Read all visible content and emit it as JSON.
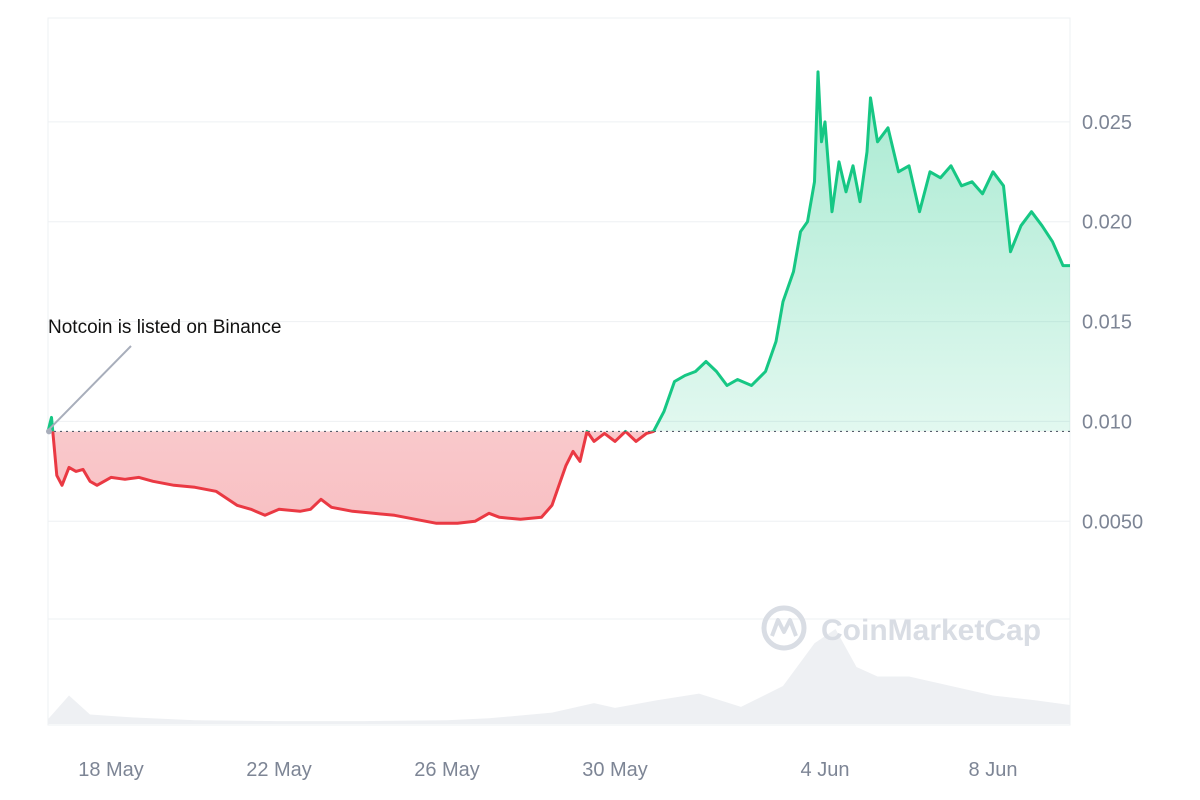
{
  "chart_data": {
    "type": "area",
    "title": "",
    "xlabel": "",
    "ylabel": "",
    "baseline": 0.0095,
    "ylim": [
      -0.0052,
      0.0302
    ],
    "y_ticks": [
      {
        "value": 0.025,
        "label": "0.025"
      },
      {
        "value": 0.02,
        "label": "0.020"
      },
      {
        "value": 0.015,
        "label": "0.015"
      },
      {
        "value": 0.01,
        "label": "0.010"
      },
      {
        "value": 0.005,
        "label": "0.0050"
      }
    ],
    "x_range": [
      "2024-05-16T12:00",
      "2024-06-09T20:00"
    ],
    "x_ticks": [
      {
        "date": "2024-05-18",
        "label": "18 May"
      },
      {
        "date": "2024-05-22",
        "label": "22 May"
      },
      {
        "date": "2024-05-26",
        "label": "26 May"
      },
      {
        "date": "2024-05-30",
        "label": "30 May"
      },
      {
        "date": "2024-06-04",
        "label": "4 Jun"
      },
      {
        "date": "2024-06-08",
        "label": "8 Jun"
      }
    ],
    "colors": {
      "up": "#16c784",
      "down": "#ea3943",
      "volume": "#eef0f3",
      "grid": "#eef0f3"
    },
    "annotation": {
      "text": "Notcoin is listed on Binance",
      "date": "2024-05-16T12:00"
    },
    "watermark": "CoinMarketCap",
    "series": [
      {
        "points": [
          [
            "2024-05-16T12:00",
            0.0095
          ],
          [
            "2024-05-16T14:00",
            0.0102
          ],
          [
            "2024-05-16T17:00",
            0.0073
          ],
          [
            "2024-05-16T20:00",
            0.0068
          ],
          [
            "2024-05-17T00:00",
            0.0077
          ],
          [
            "2024-05-17T04:00",
            0.0075
          ],
          [
            "2024-05-17T08:00",
            0.0076
          ],
          [
            "2024-05-17T12:00",
            0.007
          ],
          [
            "2024-05-17T16:00",
            0.0068
          ],
          [
            "2024-05-18T00:00",
            0.0072
          ],
          [
            "2024-05-18T08:00",
            0.0071
          ],
          [
            "2024-05-18T16:00",
            0.0072
          ],
          [
            "2024-05-19T00:00",
            0.007
          ],
          [
            "2024-05-19T12:00",
            0.0068
          ],
          [
            "2024-05-20T00:00",
            0.0067
          ],
          [
            "2024-05-20T12:00",
            0.0065
          ],
          [
            "2024-05-21T00:00",
            0.0058
          ],
          [
            "2024-05-21T08:00",
            0.0056
          ],
          [
            "2024-05-21T16:00",
            0.0053
          ],
          [
            "2024-05-22T00:00",
            0.0056
          ],
          [
            "2024-05-22T12:00",
            0.0055
          ],
          [
            "2024-05-22T18:00",
            0.0056
          ],
          [
            "2024-05-23T00:00",
            0.0061
          ],
          [
            "2024-05-23T06:00",
            0.0057
          ],
          [
            "2024-05-23T18:00",
            0.0055
          ],
          [
            "2024-05-24T06:00",
            0.0054
          ],
          [
            "2024-05-24T18:00",
            0.0053
          ],
          [
            "2024-05-25T06:00",
            0.0051
          ],
          [
            "2024-05-25T18:00",
            0.0049
          ],
          [
            "2024-05-26T06:00",
            0.0049
          ],
          [
            "2024-05-26T16:00",
            0.005
          ],
          [
            "2024-05-27T00:00",
            0.0054
          ],
          [
            "2024-05-27T06:00",
            0.0052
          ],
          [
            "2024-05-27T18:00",
            0.0051
          ],
          [
            "2024-05-28T06:00",
            0.0052
          ],
          [
            "2024-05-28T12:00",
            0.0058
          ],
          [
            "2024-05-28T16:00",
            0.0068
          ],
          [
            "2024-05-28T20:00",
            0.0078
          ],
          [
            "2024-05-29T00:00",
            0.0085
          ],
          [
            "2024-05-29T04:00",
            0.008
          ],
          [
            "2024-05-29T08:00",
            0.0095
          ],
          [
            "2024-05-29T12:00",
            0.009
          ],
          [
            "2024-05-29T18:00",
            0.0094
          ],
          [
            "2024-05-30T00:00",
            0.009
          ],
          [
            "2024-05-30T06:00",
            0.0095
          ],
          [
            "2024-05-30T12:00",
            0.009
          ],
          [
            "2024-05-30T18:00",
            0.0094
          ],
          [
            "2024-05-30T22:00",
            0.0095
          ],
          [
            "2024-05-31T04:00",
            0.0105
          ],
          [
            "2024-05-31T10:00",
            0.012
          ],
          [
            "2024-05-31T16:00",
            0.0123
          ],
          [
            "2024-05-31T22:00",
            0.0125
          ],
          [
            "2024-06-01T04:00",
            0.013
          ],
          [
            "2024-06-01T10:00",
            0.0125
          ],
          [
            "2024-06-01T16:00",
            0.0118
          ],
          [
            "2024-06-01T22:00",
            0.0121
          ],
          [
            "2024-06-02T06:00",
            0.0118
          ],
          [
            "2024-06-02T14:00",
            0.0125
          ],
          [
            "2024-06-02T20:00",
            0.014
          ],
          [
            "2024-06-03T00:00",
            0.016
          ],
          [
            "2024-06-03T06:00",
            0.0175
          ],
          [
            "2024-06-03T10:00",
            0.0195
          ],
          [
            "2024-06-03T14:00",
            0.02
          ],
          [
            "2024-06-03T18:00",
            0.022
          ],
          [
            "2024-06-03T20:00",
            0.0275
          ],
          [
            "2024-06-03T22:00",
            0.024
          ],
          [
            "2024-06-04T00:00",
            0.025
          ],
          [
            "2024-06-04T04:00",
            0.0205
          ],
          [
            "2024-06-04T08:00",
            0.023
          ],
          [
            "2024-06-04T12:00",
            0.0215
          ],
          [
            "2024-06-04T16:00",
            0.0228
          ],
          [
            "2024-06-04T20:00",
            0.021
          ],
          [
            "2024-06-05T00:00",
            0.0235
          ],
          [
            "2024-06-05T02:00",
            0.0262
          ],
          [
            "2024-06-05T06:00",
            0.024
          ],
          [
            "2024-06-05T12:00",
            0.0247
          ],
          [
            "2024-06-05T18:00",
            0.0225
          ],
          [
            "2024-06-06T00:00",
            0.0228
          ],
          [
            "2024-06-06T06:00",
            0.0205
          ],
          [
            "2024-06-06T12:00",
            0.0225
          ],
          [
            "2024-06-06T18:00",
            0.0222
          ],
          [
            "2024-06-07T00:00",
            0.0228
          ],
          [
            "2024-06-07T06:00",
            0.0218
          ],
          [
            "2024-06-07T12:00",
            0.022
          ],
          [
            "2024-06-07T18:00",
            0.0214
          ],
          [
            "2024-06-08T00:00",
            0.0225
          ],
          [
            "2024-06-08T06:00",
            0.0218
          ],
          [
            "2024-06-08T10:00",
            0.0185
          ],
          [
            "2024-06-08T16:00",
            0.0198
          ],
          [
            "2024-06-08T22:00",
            0.0205
          ],
          [
            "2024-06-09T04:00",
            0.0198
          ],
          [
            "2024-06-09T10:00",
            0.019
          ],
          [
            "2024-06-09T16:00",
            0.0178
          ],
          [
            "2024-06-09T20:00",
            0.0178
          ]
        ]
      }
    ],
    "volume": [
      [
        "2024-05-16T12:00",
        0.05
      ],
      [
        "2024-05-17T00:00",
        0.3
      ],
      [
        "2024-05-17T12:00",
        0.1
      ],
      [
        "2024-05-18T12:00",
        0.07
      ],
      [
        "2024-05-20T00:00",
        0.04
      ],
      [
        "2024-05-22T00:00",
        0.03
      ],
      [
        "2024-05-24T00:00",
        0.03
      ],
      [
        "2024-05-26T00:00",
        0.04
      ],
      [
        "2024-05-27T00:00",
        0.06
      ],
      [
        "2024-05-28T12:00",
        0.12
      ],
      [
        "2024-05-29T12:00",
        0.22
      ],
      [
        "2024-05-30T00:00",
        0.17
      ],
      [
        "2024-05-31T00:00",
        0.25
      ],
      [
        "2024-06-01T00:00",
        0.32
      ],
      [
        "2024-06-02T00:00",
        0.18
      ],
      [
        "2024-06-03T00:00",
        0.4
      ],
      [
        "2024-06-03T18:00",
        0.85
      ],
      [
        "2024-06-04T06:00",
        1.0
      ],
      [
        "2024-06-04T18:00",
        0.6
      ],
      [
        "2024-06-05T06:00",
        0.5
      ],
      [
        "2024-06-06T00:00",
        0.5
      ],
      [
        "2024-06-07T00:00",
        0.4
      ],
      [
        "2024-06-08T00:00",
        0.3
      ],
      [
        "2024-06-09T00:00",
        0.25
      ],
      [
        "2024-06-09T20:00",
        0.2
      ]
    ]
  }
}
